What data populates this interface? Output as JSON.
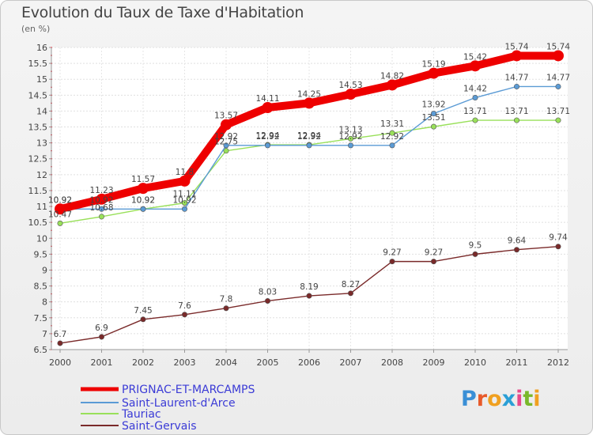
{
  "header": {
    "title": "Evolution du Taux de Taxe d'Habitation",
    "unit": "(en %)"
  },
  "logo": {
    "text": "Proxiti"
  },
  "chart_data": {
    "type": "line",
    "title": "Evolution du Taux de Taxe d'Habitation",
    "ylabel": "(en %)",
    "xlabel": "",
    "x": [
      "2000",
      "2001",
      "2002",
      "2003",
      "2004",
      "2005",
      "2006",
      "2007",
      "2008",
      "2009",
      "2010",
      "2011",
      "2012"
    ],
    "ylim": [
      6.5,
      16
    ],
    "yticks": [
      6.5,
      7,
      7.5,
      8,
      8.5,
      9,
      9.5,
      10,
      10.5,
      11,
      11.5,
      12,
      12.5,
      13,
      13.5,
      14,
      14.5,
      15,
      15.5,
      16
    ],
    "grid": true,
    "legend_position": "bottom-left",
    "series": [
      {
        "name": "PRIGNAC-ET-MARCAMPS",
        "color": "#ee0000",
        "values": [
          10.92,
          11.23,
          11.57,
          11.8,
          13.57,
          14.11,
          14.25,
          14.53,
          14.82,
          15.19,
          15.42,
          15.74,
          15.74
        ],
        "labels": [
          "10.92",
          "11.23",
          "11.57",
          "11.8",
          "13.57",
          "14.11",
          "14.25",
          "14.53",
          "14.82",
          "15.19",
          "15.42",
          "15.74",
          "15.74"
        ]
      },
      {
        "name": "Saint-Laurent-d'Arce",
        "color": "#5b9bd5",
        "values": [
          10.92,
          10.92,
          10.92,
          10.92,
          12.92,
          12.92,
          12.92,
          12.92,
          12.92,
          13.92,
          14.42,
          14.77,
          14.77
        ],
        "labels": [
          "10.92",
          "10.92",
          "10.92",
          "10.92",
          "12.92",
          "12.92",
          "12.92",
          "12.92",
          "12.92",
          "13.92",
          "14.42",
          "14.77",
          "14.77"
        ]
      },
      {
        "name": "Tauriac",
        "color": "#99e05a",
        "values": [
          10.47,
          10.68,
          10.92,
          11.11,
          12.75,
          12.94,
          12.94,
          13.13,
          13.31,
          13.51,
          13.71,
          13.71,
          13.71
        ],
        "labels": [
          "10.47",
          "10.68",
          "10.92",
          "11.11",
          "12.75",
          "12.94",
          "12.94",
          "13.13",
          "13.31",
          "13.51",
          "13.71",
          "13.71",
          "13.71"
        ]
      },
      {
        "name": "Saint-Gervais",
        "color": "#7a2a2a",
        "values": [
          6.7,
          6.9,
          7.45,
          7.6,
          7.8,
          8.03,
          8.19,
          8.27,
          9.27,
          9.27,
          9.5,
          9.64,
          9.74
        ],
        "labels": [
          "6.7",
          "6.9",
          "7.45",
          "7.6",
          "7.8",
          "8.03",
          "8.19",
          "8.27",
          "9.27",
          "9.27",
          "9.5",
          "9.64",
          "9.74"
        ]
      }
    ]
  }
}
